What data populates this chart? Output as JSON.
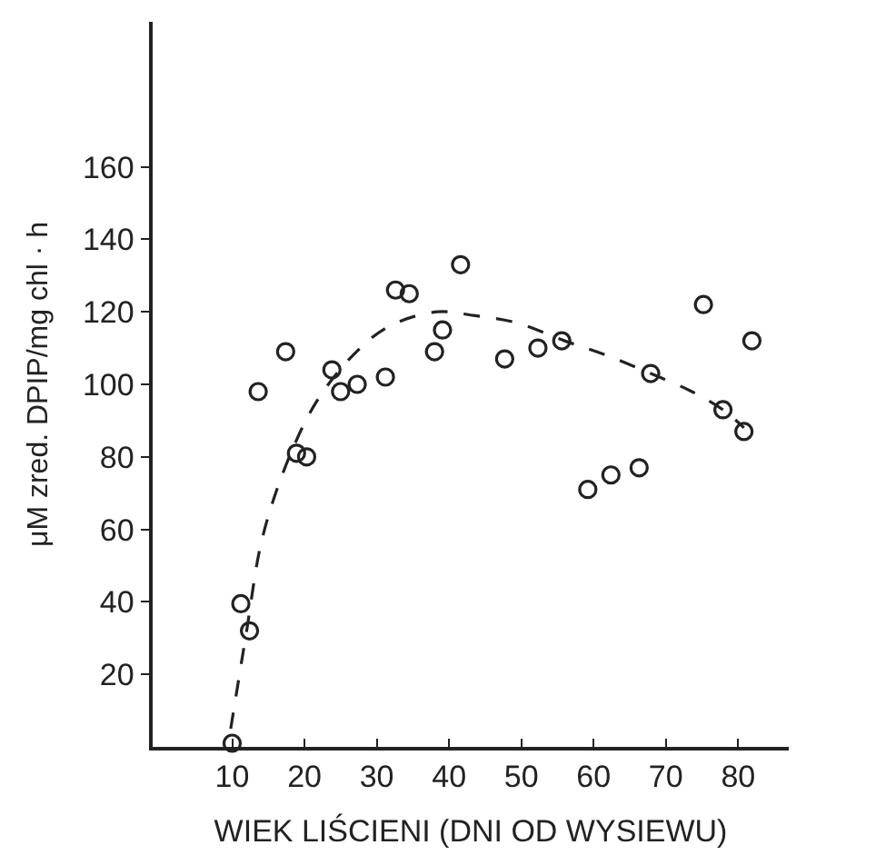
{
  "chart_data": {
    "type": "scatter",
    "xlabel": "WIEK LIŚCIENI (DNI OD WYSIEWU)",
    "ylabel": "μM zred. DPIP/mg chl · h",
    "xlim": [
      -1,
      87
    ],
    "ylim": [
      0,
      200
    ],
    "xticks": [
      10,
      20,
      30,
      40,
      50,
      60,
      70,
      80
    ],
    "yticks": [
      20,
      40,
      60,
      80,
      100,
      120,
      140,
      160
    ],
    "marker": "circle",
    "series": [
      {
        "color": "#222222",
        "x": [
          10,
          11.2,
          12.4,
          13.6,
          17.4,
          18.9,
          20.3,
          23.8,
          25.0,
          27.3,
          31.2,
          32.6,
          34.5,
          38.0,
          39.1,
          41.6,
          47.7,
          52.3,
          55.6,
          59.2,
          62.4,
          66.3,
          67.9,
          75.2,
          77.9,
          80.8,
          81.9
        ],
        "values": [
          1,
          39.5,
          32,
          98,
          109,
          81,
          80,
          104,
          98,
          100,
          102,
          126,
          125,
          109,
          115,
          133,
          107,
          110,
          112,
          71,
          75,
          77,
          103,
          122,
          93,
          87,
          112
        ]
      },
      {
        "type": "line",
        "color": "#222222",
        "marker": "none",
        "line_style": "dashed",
        "x": [
          9.8,
          12,
          14.1,
          17.5,
          21.6,
          26.7,
          31.7,
          38.4,
          43.4,
          49.3,
          56,
          61.8,
          67.9,
          73.6,
          77.9,
          80.8
        ],
        "values": [
          5,
          32,
          57,
          78,
          95,
          108,
          116,
          120,
          119,
          117,
          112,
          108,
          103,
          98,
          93,
          88
        ]
      }
    ]
  }
}
